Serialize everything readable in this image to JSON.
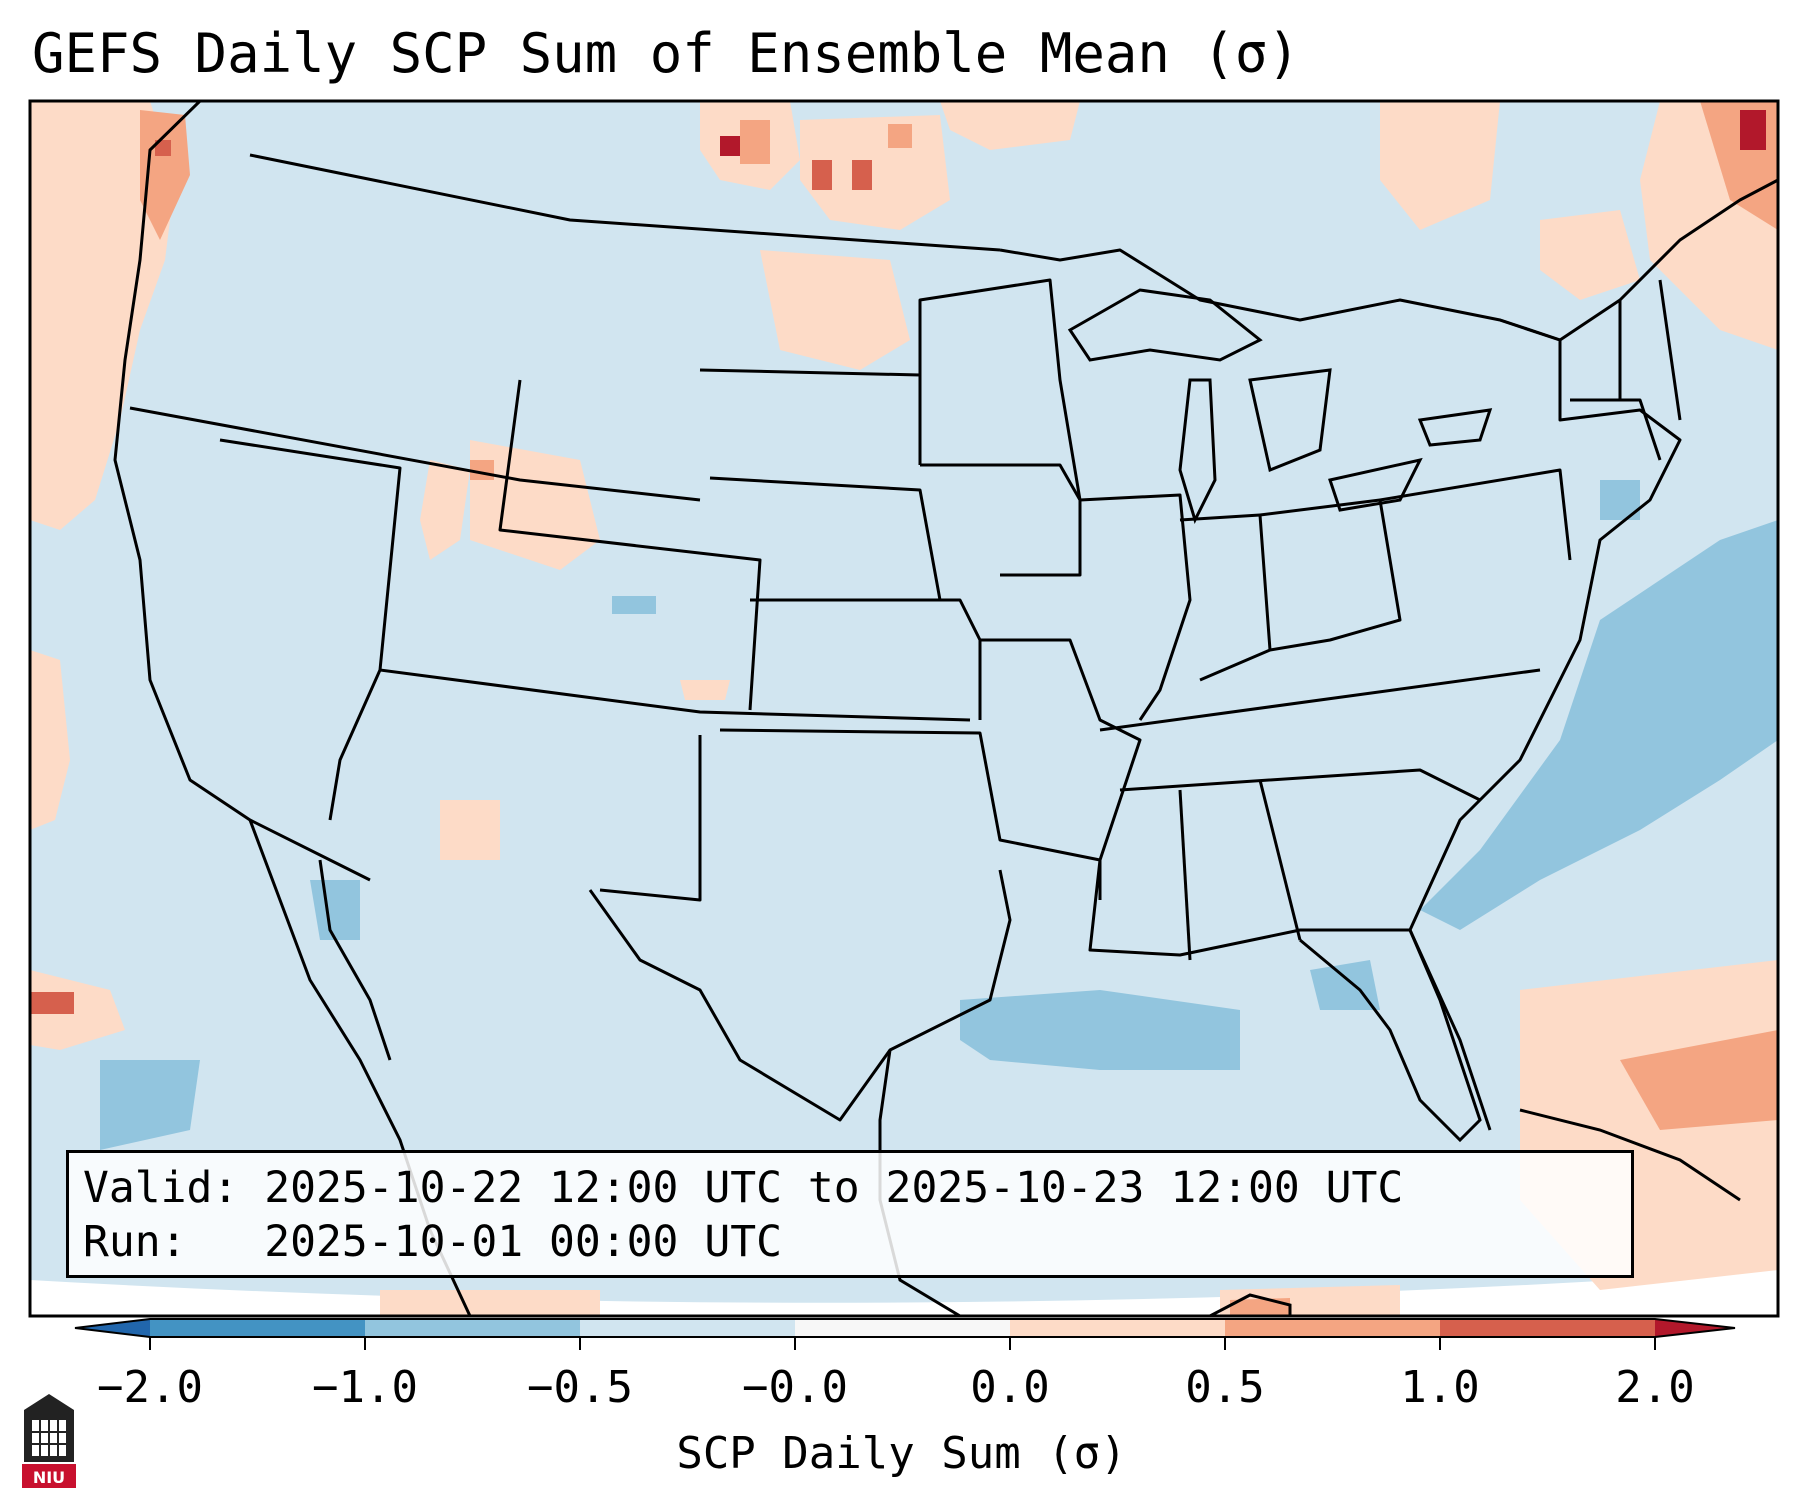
{
  "title": "GEFS Daily SCP Sum of Ensemble Mean (σ)",
  "info": {
    "valid_label": "Valid:",
    "valid_value": "2025-10-22 12:00 UTC to 2025-10-23 12:00 UTC",
    "run_label": "Run:",
    "run_value": "2025-10-01 00:00 UTC"
  },
  "colorbar": {
    "label": "SCP Daily Sum (σ)",
    "ticks": [
      "−2.0",
      "−1.0",
      "−0.5",
      "−0.0",
      "0.0",
      "0.5",
      "1.0",
      "2.0"
    ],
    "colors": [
      "#4a90c4",
      "#92c5de",
      "#d1e5f0",
      "#f7f7f7",
      "#fddbc7",
      "#f4a582",
      "#d6604d",
      "#b2182b"
    ]
  },
  "colors": {
    "background_neutral": "#d1e5f0",
    "positive_light": "#fddbc7",
    "positive_mid": "#f4a582",
    "positive_strong": "#d6604d",
    "positive_max": "#b2182b",
    "negative_light": "#92c5de"
  },
  "logo": {
    "text": "NIU"
  }
}
